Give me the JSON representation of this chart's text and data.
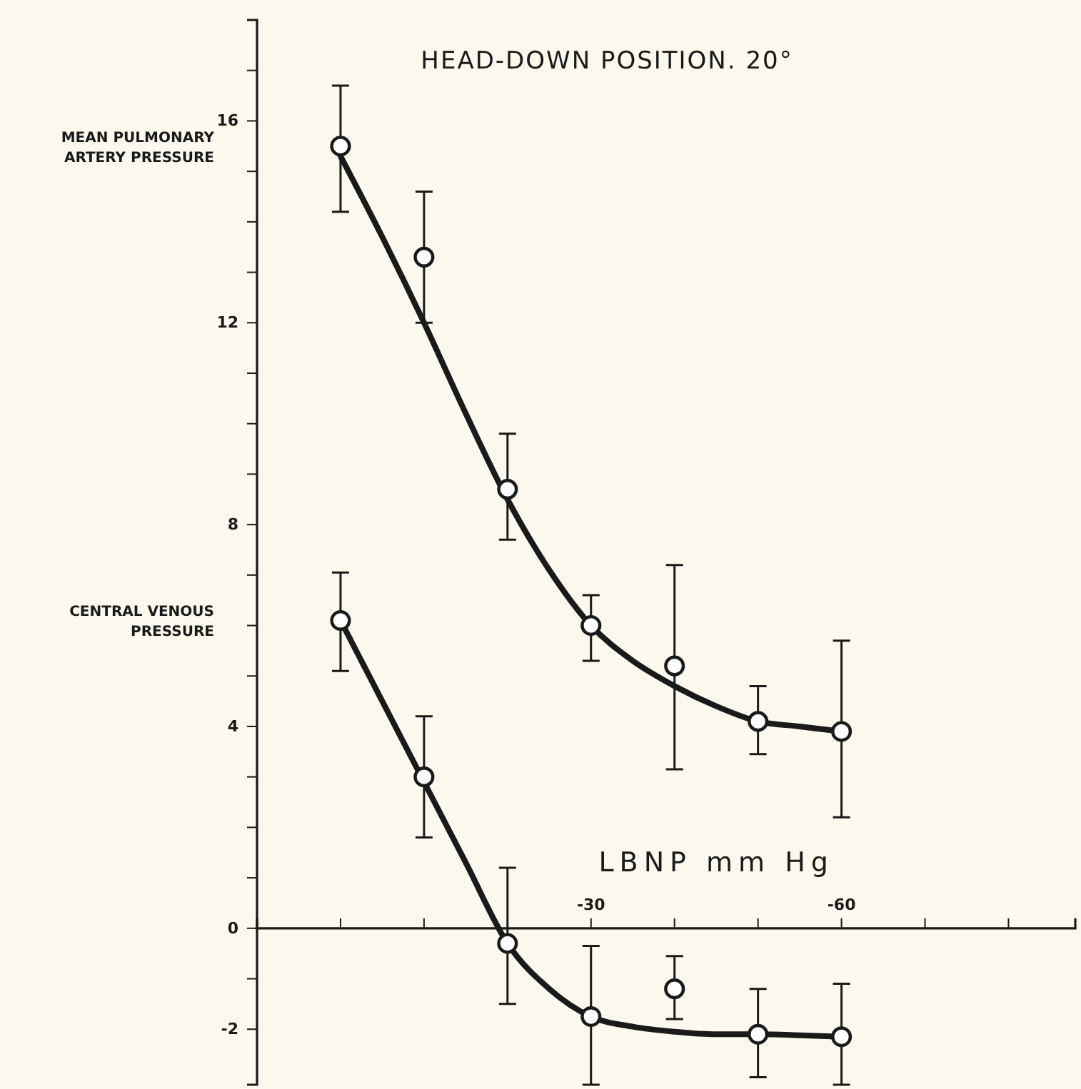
{
  "chart_data": {
    "type": "scatter",
    "title": "HEAD-DOWN POSITION. 20°",
    "xlabel": "LBNP mm Hg",
    "xlim": [
      10,
      -88
    ],
    "xticks": [
      {
        "value": 10,
        "label": null
      },
      {
        "value": 0,
        "label": null
      },
      {
        "value": -10,
        "label": null
      },
      {
        "value": -20,
        "label": null
      },
      -30,
      {
        "value": -40,
        "label": null
      },
      {
        "value": -50,
        "label": null
      },
      -60,
      {
        "value": -70,
        "label": null
      },
      {
        "value": -80,
        "label": null
      }
    ],
    "ylim": [
      -3.1,
      18
    ],
    "yticks": [
      -2,
      {
        "value": -1,
        "label": null
      },
      0,
      {
        "value": 1,
        "label": null
      },
      {
        "value": 2,
        "label": null
      },
      {
        "value": 3,
        "label": null
      },
      4,
      {
        "value": 5,
        "label": null
      },
      {
        "value": 6,
        "label": null
      },
      {
        "value": 7,
        "label": null
      },
      8,
      {
        "value": 9,
        "label": null
      },
      {
        "value": 10,
        "label": null
      },
      {
        "value": 11,
        "label": null
      },
      12,
      {
        "value": 13,
        "label": null
      },
      {
        "value": 14,
        "label": null
      },
      {
        "value": 15,
        "label": null
      },
      16,
      {
        "value": 17,
        "label": null
      }
    ],
    "annotations": [
      "MEAN PULMONARY ARTERY PRESSURE",
      "CENTRAL VENOUS PRESSURE"
    ],
    "series": [
      {
        "marker": "circle",
        "color": "#1a1a1a",
        "x": [
          0,
          -10,
          -20,
          -30,
          -40,
          -50,
          -60
        ],
        "values": [
          15.5,
          13.3,
          8.7,
          6.0,
          5.2,
          4.1,
          3.9
        ],
        "errors": [
          [
            14.2,
            16.7
          ],
          [
            12.0,
            14.6
          ],
          [
            7.7,
            9.8
          ],
          [
            5.3,
            6.6
          ],
          [
            3.15,
            7.2
          ],
          [
            3.45,
            4.8
          ],
          [
            2.2,
            5.7
          ]
        ]
      },
      {
        "type": "line",
        "marker": "none",
        "color": "#1a1a1a",
        "x": [
          0,
          -5,
          -10,
          -15,
          -20,
          -25,
          -30,
          -35,
          -40,
          -45,
          -50,
          -55,
          -60
        ],
        "values": [
          15.3,
          13.7,
          12.0,
          10.2,
          8.5,
          7.1,
          6.0,
          5.3,
          4.8,
          4.4,
          4.1,
          4.0,
          3.9
        ]
      },
      {
        "marker": "circle",
        "color": "#1a1a1a",
        "x": [
          0,
          -10,
          -20,
          -30,
          -40,
          -50,
          -60
        ],
        "values": [
          6.1,
          3.0,
          -0.3,
          -1.75,
          -1.2,
          -2.1,
          -2.15
        ],
        "errors": [
          [
            5.1,
            7.05
          ],
          [
            1.8,
            4.2
          ],
          [
            -1.5,
            1.2
          ],
          [
            -3.1,
            -0.35
          ],
          [
            -1.8,
            -0.55
          ],
          [
            -2.95,
            -1.2
          ],
          [
            -3.1,
            -1.1
          ]
        ]
      },
      {
        "type": "line",
        "marker": "none",
        "color": "#1a1a1a",
        "x": [
          0,
          -5,
          -10,
          -15,
          -20,
          -25,
          -30,
          -35,
          -40,
          -45,
          -50,
          -55,
          -60
        ],
        "values": [
          6.1,
          4.5,
          2.9,
          1.3,
          -0.3,
          -1.2,
          -1.75,
          -1.95,
          -2.05,
          -2.1,
          -2.1,
          -2.12,
          -2.15
        ]
      }
    ]
  }
}
